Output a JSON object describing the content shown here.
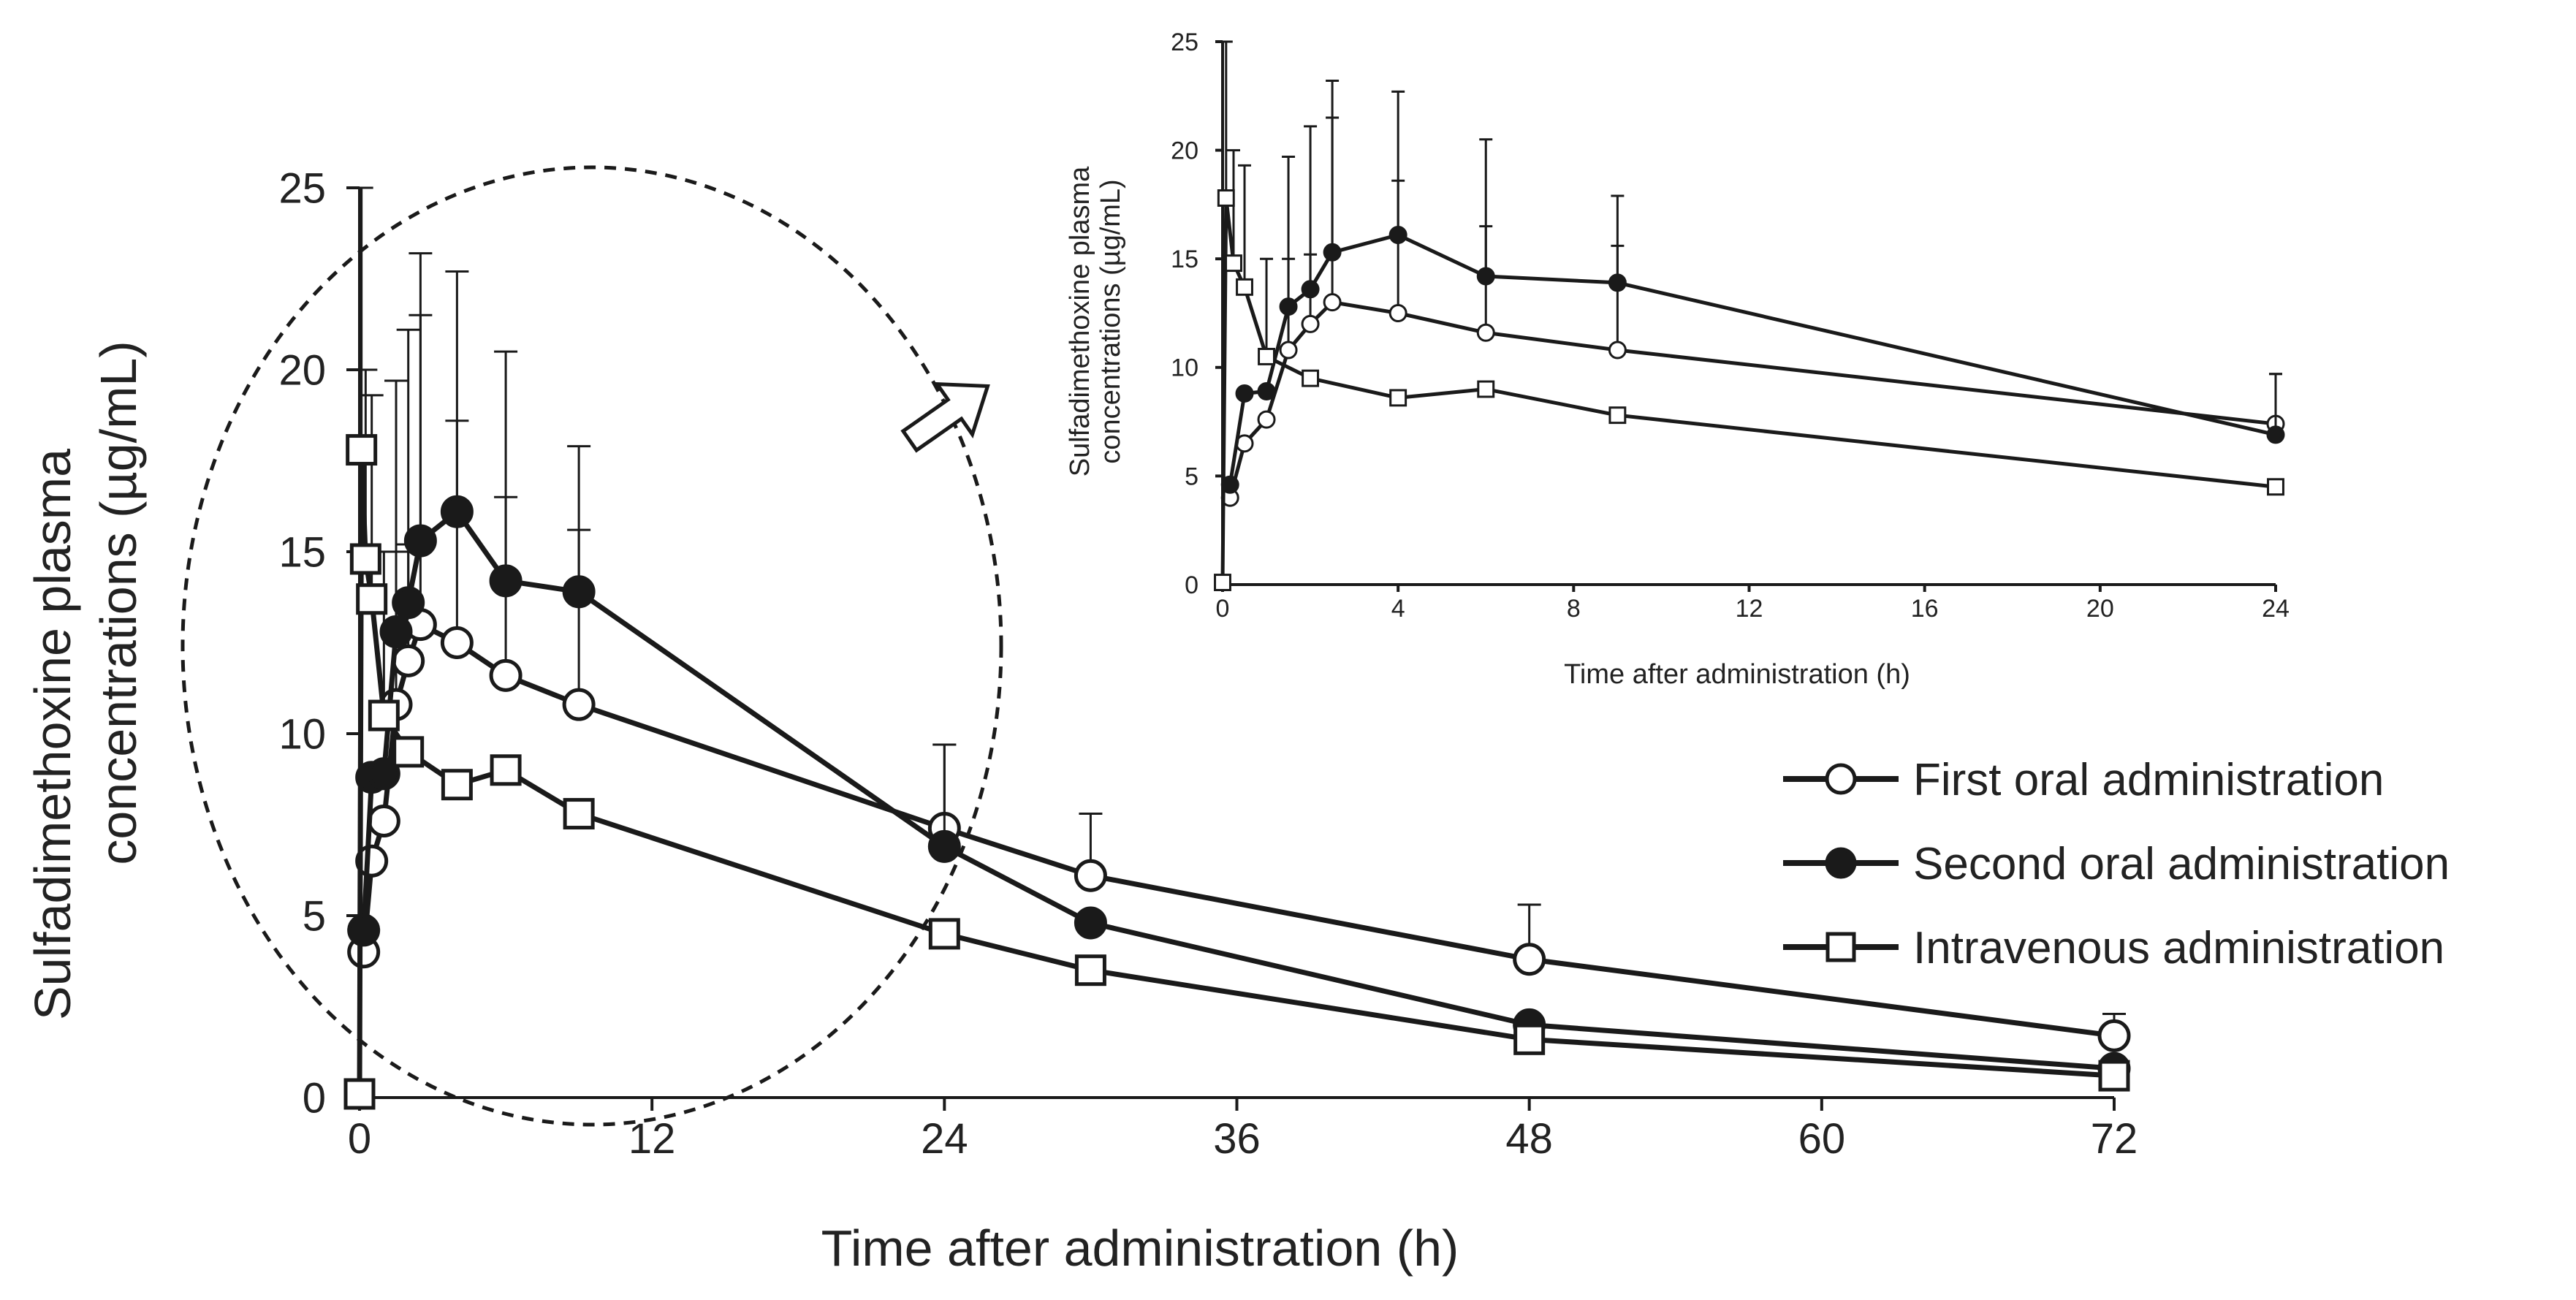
{
  "colors": {
    "ink": "#1a1a1a",
    "marker_open": "#ffffff",
    "marker_filled": "#1a1a1a"
  },
  "chart_data": [
    {
      "id": "main",
      "type": "line",
      "title": "",
      "xlabel": "Time after administration (h)",
      "ylabel_lines": [
        "Sulfadimethoxine  plasma",
        "concentrations (µg/mL)"
      ],
      "xlim": [
        0,
        72
      ],
      "ylim": [
        0,
        25
      ],
      "xticks": [
        0,
        12,
        24,
        36,
        48,
        60,
        72
      ],
      "yticks": [
        0,
        5,
        10,
        15,
        20,
        25
      ],
      "grid": false,
      "legend_position": "right",
      "series": [
        {
          "name": "First oral administration",
          "marker": "open-circle",
          "x": [
            0.17,
            0.5,
            1,
            1.5,
            2,
            2.5,
            4,
            6,
            9,
            24,
            30,
            48,
            72
          ],
          "y": [
            4.0,
            6.5,
            7.6,
            10.8,
            12.0,
            13.0,
            12.5,
            11.6,
            10.8,
            7.4,
            6.1,
            3.8,
            1.7
          ],
          "err_upper": [
            null,
            null,
            null,
            4.2,
            3.2,
            8.5,
            6.1,
            4.9,
            4.8,
            2.3,
            1.7,
            1.5,
            0.6
          ]
        },
        {
          "name": "Second oral administration",
          "marker": "filled-circle",
          "x": [
            0.17,
            0.5,
            1,
            1.5,
            2,
            2.5,
            4,
            6,
            9,
            24,
            30,
            48,
            72
          ],
          "y": [
            4.6,
            8.8,
            8.9,
            12.8,
            13.6,
            15.3,
            16.1,
            14.2,
            13.9,
            6.9,
            4.8,
            2.0,
            0.8
          ],
          "err_upper": [
            null,
            null,
            null,
            6.9,
            7.5,
            7.9,
            6.6,
            6.3,
            4.0,
            2.8,
            null,
            null,
            null
          ]
        },
        {
          "name": "Intravenous administration",
          "marker": "open-square",
          "x": [
            0,
            0.08,
            0.25,
            0.5,
            1,
            2,
            4,
            6,
            9,
            24,
            30,
            48,
            72
          ],
          "y": [
            0.1,
            17.8,
            14.8,
            13.7,
            10.5,
            9.5,
            8.6,
            9.0,
            7.8,
            4.5,
            3.5,
            1.6,
            0.6
          ],
          "err_upper": [
            null,
            7.2,
            5.2,
            5.6,
            4.5,
            null,
            null,
            null,
            null,
            null,
            null,
            null,
            null
          ]
        }
      ]
    },
    {
      "id": "inset",
      "type": "line",
      "title": "",
      "xlabel": "Time after administration (h)",
      "ylabel_lines": [
        "Sulfadimethoxine  plasma",
        "concentrations (µg/mL)"
      ],
      "xlim": [
        0,
        24
      ],
      "ylim": [
        0,
        25
      ],
      "xticks": [
        0,
        4,
        8,
        12,
        16,
        20,
        24
      ],
      "yticks": [
        0,
        5,
        10,
        15,
        20,
        25
      ],
      "grid": false,
      "series": [
        {
          "name": "First oral administration",
          "marker": "open-circle",
          "x": [
            0.17,
            0.5,
            1,
            1.5,
            2,
            2.5,
            4,
            6,
            9,
            24
          ],
          "y": [
            4.0,
            6.5,
            7.6,
            10.8,
            12.0,
            13.0,
            12.5,
            11.6,
            10.8,
            7.4
          ],
          "err_upper": [
            null,
            null,
            null,
            4.2,
            3.2,
            8.5,
            6.1,
            4.9,
            4.8,
            2.3
          ]
        },
        {
          "name": "Second oral administration",
          "marker": "filled-circle",
          "x": [
            0.17,
            0.5,
            1,
            1.5,
            2,
            2.5,
            4,
            6,
            9,
            24
          ],
          "y": [
            4.6,
            8.8,
            8.9,
            12.8,
            13.6,
            15.3,
            16.1,
            14.2,
            13.9,
            6.9
          ],
          "err_upper": [
            null,
            null,
            null,
            6.9,
            7.5,
            7.9,
            6.6,
            6.3,
            4.0,
            2.8
          ]
        },
        {
          "name": "Intravenous administration",
          "marker": "open-square",
          "x": [
            0,
            0.08,
            0.25,
            0.5,
            1,
            2,
            4,
            6,
            9,
            24
          ],
          "y": [
            0.1,
            17.8,
            14.8,
            13.7,
            10.5,
            9.5,
            8.6,
            9.0,
            7.8,
            4.5
          ],
          "err_upper": [
            null,
            7.2,
            5.2,
            5.6,
            4.5,
            null,
            null,
            null,
            null,
            null
          ]
        }
      ]
    }
  ]
}
